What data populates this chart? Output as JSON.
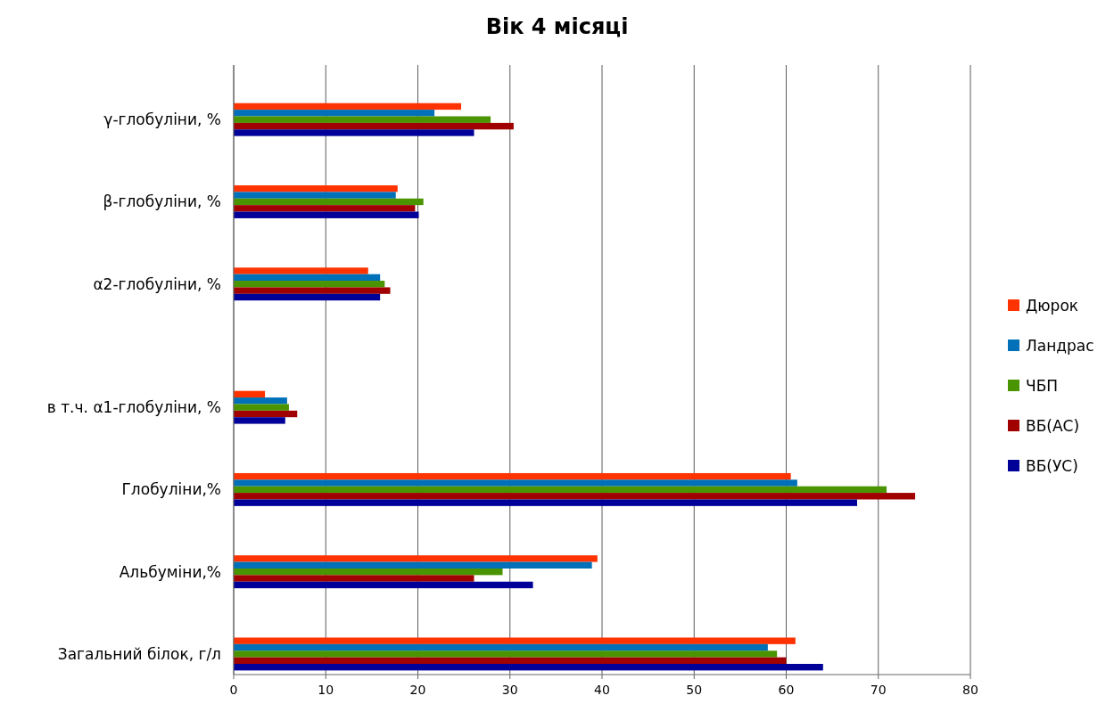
{
  "chart_data": {
    "type": "bar",
    "orientation": "horizontal",
    "title": "Вік 4 місяці",
    "categories": [
      null,
      "γ-глобуліни, %",
      null,
      "β-глобуліни, %",
      null,
      "α2-глобуліни, %",
      null,
      null,
      "в т.ч. α1-глобуліни, %",
      null,
      "Глобуліни,%",
      null,
      "Альбуміни,%",
      null,
      "Загальний білок, г/л"
    ],
    "series": [
      {
        "name": "Дюрок",
        "color": "#ff3300",
        "values": [
          null,
          24.7,
          null,
          17.8,
          null,
          14.6,
          null,
          null,
          3.4,
          null,
          60.5,
          null,
          39.5,
          null,
          61.0
        ]
      },
      {
        "name": "Ландрас",
        "color": "#0070b8",
        "values": [
          null,
          21.8,
          null,
          17.6,
          null,
          15.9,
          null,
          null,
          5.8,
          null,
          61.2,
          null,
          38.9,
          null,
          58.0
        ]
      },
      {
        "name": "ЧБП",
        "color": "#4a9400",
        "values": [
          null,
          27.9,
          null,
          20.6,
          null,
          16.4,
          null,
          null,
          6.0,
          null,
          70.9,
          null,
          29.2,
          null,
          59.0
        ]
      },
      {
        "name": "ВБ(АС)",
        "color": "#a00000",
        "values": [
          null,
          30.4,
          null,
          19.7,
          null,
          17.0,
          null,
          null,
          6.9,
          null,
          74.0,
          null,
          26.1,
          null,
          60.0
        ]
      },
      {
        "name": "ВБ(УС)",
        "color": "#000099",
        "values": [
          null,
          26.1,
          null,
          20.1,
          null,
          15.9,
          null,
          null,
          5.6,
          null,
          67.7,
          null,
          32.5,
          null,
          64.0
        ]
      }
    ],
    "xlim": [
      0,
      80
    ],
    "xticks": [
      0,
      10,
      20,
      30,
      40,
      50,
      60,
      70,
      80
    ],
    "grid": "x",
    "legend": "right"
  }
}
